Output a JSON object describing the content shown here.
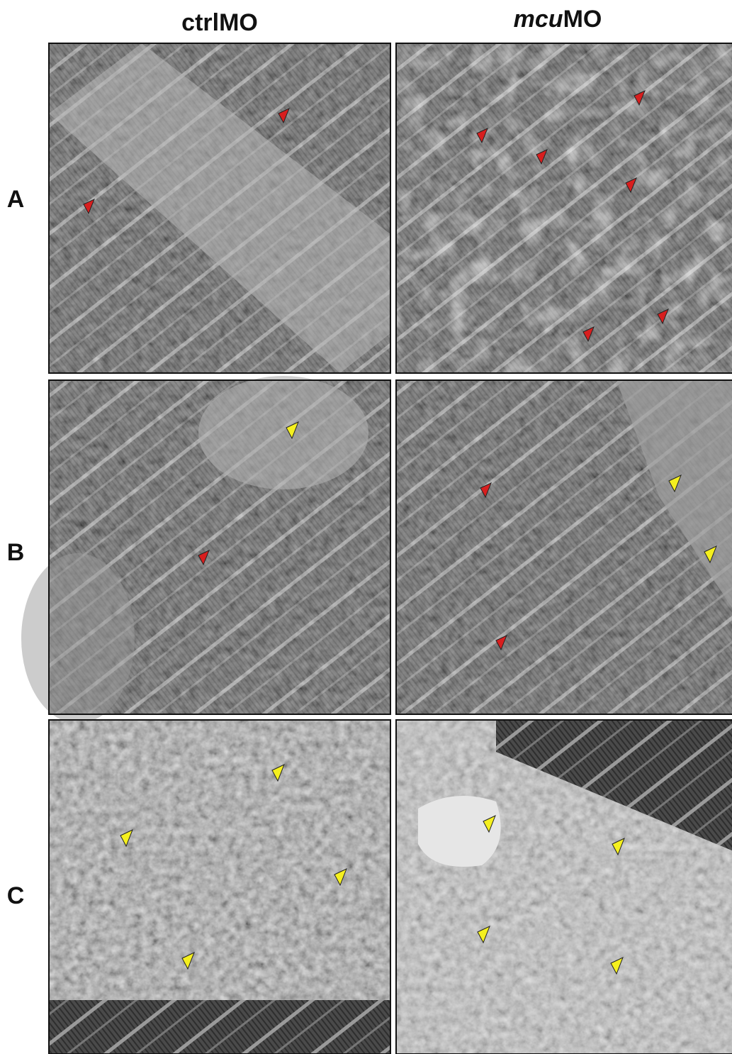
{
  "column_headers": [
    [
      "ctrlMO"
    ],
    [
      "mcu",
      "MO"
    ]
  ],
  "row_labels": [
    "A",
    "B",
    "C"
  ]
}
